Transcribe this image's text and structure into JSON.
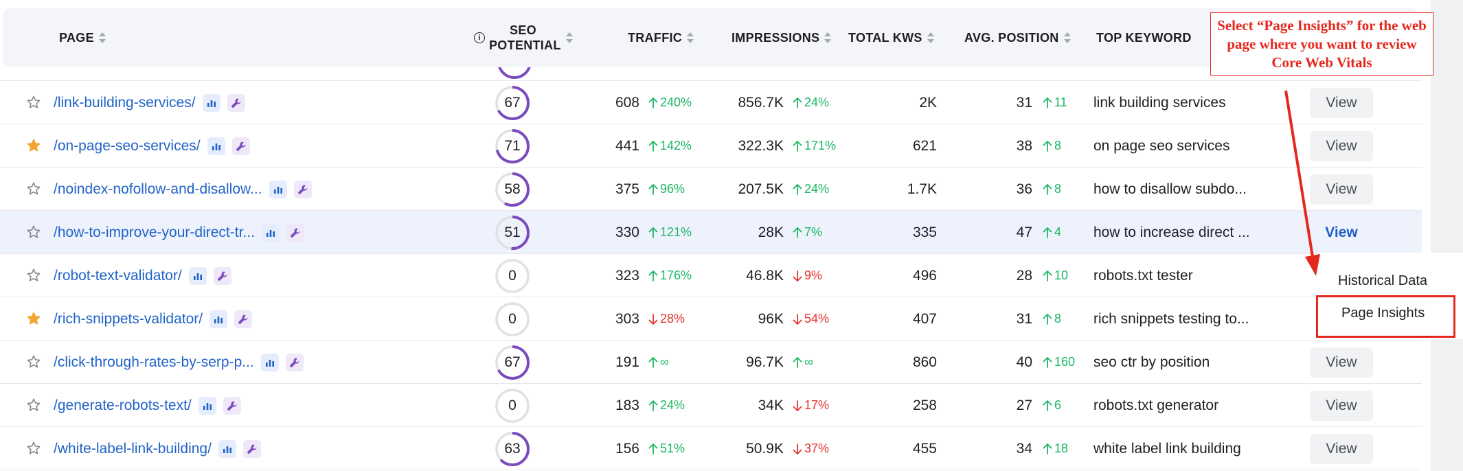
{
  "columns": {
    "page": "PAGE",
    "seo_line1": "SEO",
    "seo_line2": "POTENTIAL",
    "info_glyph": "i",
    "traffic": "TRAFFIC",
    "impressions": "IMPRESSIONS",
    "total_kws": "TOTAL KWS",
    "avg_position": "AVG. POSITION",
    "top_keyword": "TOP KEYWORD"
  },
  "colors": {
    "link": "#2163c6",
    "ring": "#7b4bbd",
    "ring_track": "#e1e1e4",
    "up": "#1bb765",
    "down": "#e5322d",
    "star": "#f2a531",
    "annotation": "#e5281e",
    "row_highlight": "#eef2fd"
  },
  "rows": [
    {
      "page": "/link-building-services/",
      "starred": false,
      "seo": "67",
      "seo_frac": 0.67,
      "traffic": "608",
      "traffic_delta": "240%",
      "traffic_dir": "up",
      "impressions": "856.7K",
      "impr_delta": "24%",
      "impr_dir": "up",
      "kws": "2K",
      "avg": "31",
      "avg_delta": "11",
      "avg_dir": "up",
      "keyword": "link building services",
      "view": "View",
      "highlight": false
    },
    {
      "page": "/on-page-seo-services/",
      "starred": true,
      "seo": "71",
      "seo_frac": 0.71,
      "traffic": "441",
      "traffic_delta": "142%",
      "traffic_dir": "up",
      "impressions": "322.3K",
      "impr_delta": "171%",
      "impr_dir": "up",
      "kws": "621",
      "avg": "38",
      "avg_delta": "8",
      "avg_dir": "up",
      "keyword": "on page seo services",
      "view": "View",
      "highlight": false
    },
    {
      "page": "/noindex-nofollow-and-disallow...",
      "starred": false,
      "seo": "58",
      "seo_frac": 0.58,
      "traffic": "375",
      "traffic_delta": "96%",
      "traffic_dir": "up",
      "impressions": "207.5K",
      "impr_delta": "24%",
      "impr_dir": "up",
      "kws": "1.7K",
      "avg": "36",
      "avg_delta": "8",
      "avg_dir": "up",
      "keyword": "how to disallow subdo...",
      "view": "View",
      "highlight": false
    },
    {
      "page": "/how-to-improve-your-direct-tr...",
      "starred": false,
      "seo": "51",
      "seo_frac": 0.51,
      "traffic": "330",
      "traffic_delta": "121%",
      "traffic_dir": "up",
      "impressions": "28K",
      "impr_delta": "7%",
      "impr_dir": "up",
      "kws": "335",
      "avg": "47",
      "avg_delta": "4",
      "avg_dir": "up",
      "keyword": "how to increase direct ...",
      "view": "View",
      "highlight": true
    },
    {
      "page": "/robot-text-validator/",
      "starred": false,
      "seo": "0",
      "seo_frac": 0,
      "traffic": "323",
      "traffic_delta": "176%",
      "traffic_dir": "up",
      "impressions": "46.8K",
      "impr_delta": "9%",
      "impr_dir": "down",
      "kws": "496",
      "avg": "28",
      "avg_delta": "10",
      "avg_dir": "up",
      "keyword": "robots.txt tester",
      "view": "",
      "highlight": false
    },
    {
      "page": "/rich-snippets-validator/",
      "starred": true,
      "seo": "0",
      "seo_frac": 0,
      "traffic": "303",
      "traffic_delta": "28%",
      "traffic_dir": "down",
      "impressions": "96K",
      "impr_delta": "54%",
      "impr_dir": "down",
      "kws": "407",
      "avg": "31",
      "avg_delta": "8",
      "avg_dir": "up",
      "keyword": "rich snippets testing to...",
      "view": "",
      "highlight": false
    },
    {
      "page": "/click-through-rates-by-serp-p...",
      "starred": false,
      "seo": "67",
      "seo_frac": 0.67,
      "traffic": "191",
      "traffic_delta": "∞",
      "traffic_dir": "up",
      "impressions": "96.7K",
      "impr_delta": "∞",
      "impr_dir": "up",
      "kws": "860",
      "avg": "40",
      "avg_delta": "160",
      "avg_dir": "up",
      "keyword": "seo ctr by position",
      "view": "View",
      "highlight": false
    },
    {
      "page": "/generate-robots-text/",
      "starred": false,
      "seo": "0",
      "seo_frac": 0,
      "traffic": "183",
      "traffic_delta": "24%",
      "traffic_dir": "up",
      "impressions": "34K",
      "impr_delta": "17%",
      "impr_dir": "down",
      "kws": "258",
      "avg": "27",
      "avg_delta": "6",
      "avg_dir": "up",
      "keyword": "robots.txt generator",
      "view": "View",
      "highlight": false
    },
    {
      "page": "/white-label-link-building/",
      "starred": false,
      "seo": "63",
      "seo_frac": 0.63,
      "traffic": "156",
      "traffic_delta": "51%",
      "traffic_dir": "up",
      "impressions": "50.9K",
      "impr_delta": "37%",
      "impr_dir": "down",
      "kws": "455",
      "avg": "34",
      "avg_delta": "18",
      "avg_dir": "up",
      "keyword": "white label link building",
      "view": "View",
      "highlight": false
    }
  ],
  "dropdown": {
    "historical": "Historical Data",
    "insights": "Page Insights"
  },
  "annotation": "Select “Page Insights” for the web page where you want to review Core Web Vitals"
}
